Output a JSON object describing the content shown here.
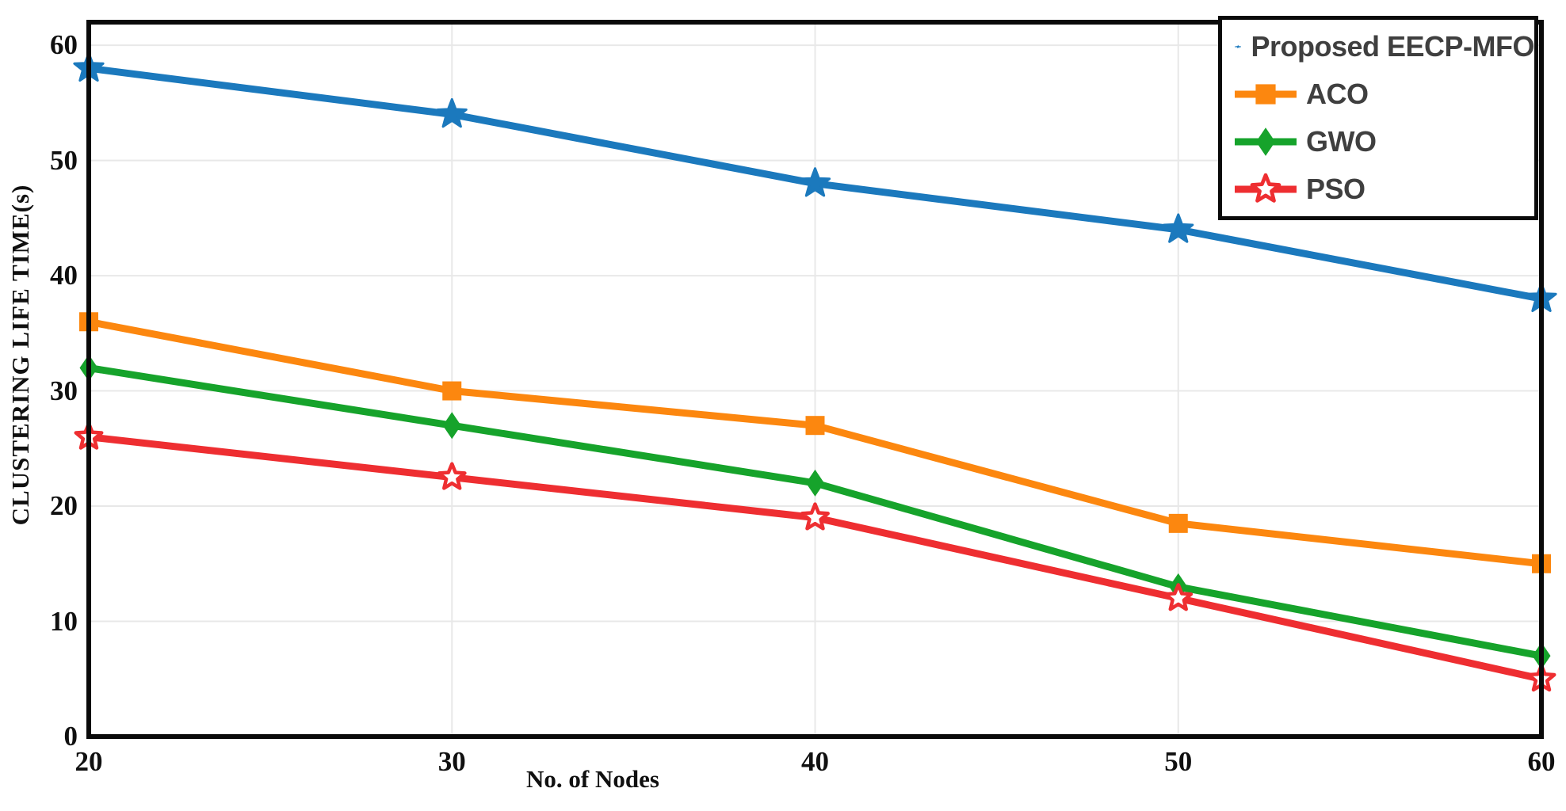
{
  "figure": {
    "background": "#ffffff",
    "plot_border_color": "#0a0a0a",
    "grid_color": "#e8e8e8",
    "axis_text_color": "#101010",
    "legend_text_color": "#3f3f3f"
  },
  "chart_data": {
    "type": "line",
    "title": "",
    "xlabel": "No. of Nodes",
    "ylabel": "CLUSTERING LIFE TIME(s)",
    "x": [
      20,
      30,
      40,
      50,
      60
    ],
    "xtick_labels": [
      "20",
      "30",
      "40",
      "50",
      "60"
    ],
    "ytick_values": [
      0,
      10,
      20,
      30,
      40,
      50,
      60
    ],
    "ytick_labels": [
      "0",
      "10",
      "20",
      "30",
      "40",
      "50",
      "60"
    ],
    "xlim": [
      20,
      60
    ],
    "ylim": [
      0,
      62
    ],
    "grid": true,
    "legend_position": "top-right",
    "series": [
      {
        "name": "Proposed EECP-MFO",
        "color": "#1b79bd",
        "marker": "star",
        "values": [
          58,
          54,
          48,
          44,
          38
        ]
      },
      {
        "name": "ACO",
        "color": "#fc870f",
        "marker": "square",
        "values": [
          36,
          30,
          27,
          18.5,
          15
        ]
      },
      {
        "name": "GWO",
        "color": "#16a32b",
        "marker": "diamond",
        "values": [
          32,
          27,
          22,
          13,
          7
        ]
      },
      {
        "name": "PSO",
        "color": "#ee2e31",
        "marker": "star-open",
        "values": [
          26,
          22.5,
          19,
          12,
          5
        ]
      }
    ]
  }
}
